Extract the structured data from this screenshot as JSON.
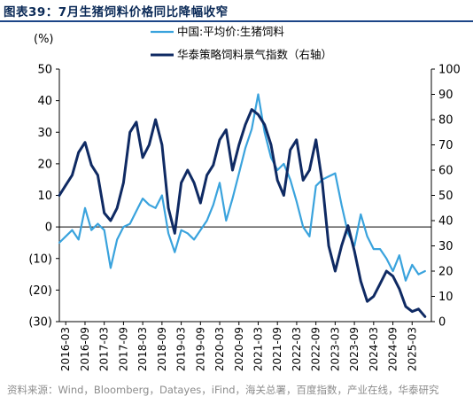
{
  "figure_title": "图表39：7月生猪饲料价格同比降幅收窄",
  "source_note": "资料来源：Wind，Bloomberg，Datayes，iFind，海关总署，百度指数，产业在线，华泰研究",
  "colors": {
    "series1": "#3aa3dd",
    "series2": "#0f2a63",
    "title": "#0b2a57",
    "rule": "#1c4587"
  },
  "chart_data": {
    "type": "line",
    "left_axis_label": "(%)",
    "left_ylim": [
      -30,
      50
    ],
    "left_ticks": [
      "50",
      "40",
      "30",
      "20",
      "10",
      "0",
      "(10)",
      "(20)",
      "(30)"
    ],
    "right_ylim": [
      0,
      100
    ],
    "right_ticks": [
      "100",
      "90",
      "80",
      "70",
      "60",
      "50",
      "40",
      "30",
      "20",
      "10",
      "0"
    ],
    "x_ticks": [
      "2016-03",
      "2016-09",
      "2017-03",
      "2017-09",
      "2018-03",
      "2018-09",
      "2019-03",
      "2019-09",
      "2020-03",
      "2020-09",
      "2021-03",
      "2021-09",
      "2022-03",
      "2022-09",
      "2023-03",
      "2023-09",
      "2024-03",
      "2024-09",
      "2025-03"
    ],
    "grid": false,
    "legend_position": "top",
    "series": [
      {
        "name": "中国:平均价:生猪饲料",
        "axis": "left",
        "color": "#3aa3dd",
        "x": [
          "2016-01",
          "2016-03",
          "2016-05",
          "2016-07",
          "2016-09",
          "2016-11",
          "2017-01",
          "2017-03",
          "2017-05",
          "2017-07",
          "2017-09",
          "2017-11",
          "2018-01",
          "2018-03",
          "2018-05",
          "2018-07",
          "2018-09",
          "2018-11",
          "2019-01",
          "2019-03",
          "2019-05",
          "2019-07",
          "2019-09",
          "2019-11",
          "2020-01",
          "2020-03",
          "2020-05",
          "2020-07",
          "2020-09",
          "2020-11",
          "2021-01",
          "2021-03",
          "2021-05",
          "2021-07",
          "2021-09",
          "2021-11",
          "2022-01",
          "2022-03",
          "2022-05",
          "2022-07",
          "2022-09",
          "2022-11",
          "2023-01",
          "2023-03",
          "2023-05",
          "2023-07",
          "2023-09",
          "2023-11",
          "2024-01",
          "2024-03",
          "2024-05",
          "2024-07",
          "2024-09",
          "2024-11",
          "2025-01",
          "2025-03",
          "2025-05",
          "2025-07"
        ],
        "values": [
          -5,
          -3,
          -1,
          -4,
          6,
          -1,
          1,
          -1,
          -13,
          -4,
          0,
          1,
          5,
          9,
          7,
          6,
          10,
          -2,
          -8,
          -1,
          -2,
          -4,
          -1,
          2,
          7,
          14,
          2,
          9,
          17,
          25,
          31,
          42,
          30,
          22,
          18,
          20,
          15,
          8,
          0,
          -3,
          13,
          15,
          16,
          17,
          7,
          -2,
          -6,
          4,
          -3,
          -7,
          -7,
          -10,
          -14,
          -9,
          -17,
          -12,
          -15,
          -14
        ]
      },
      {
        "name": "华泰策略饲料景气指数（右轴）",
        "axis": "right",
        "color": "#0f2a63",
        "x": [
          "2016-01",
          "2016-03",
          "2016-05",
          "2016-07",
          "2016-09",
          "2016-11",
          "2017-01",
          "2017-03",
          "2017-05",
          "2017-07",
          "2017-09",
          "2017-11",
          "2018-01",
          "2018-03",
          "2018-05",
          "2018-07",
          "2018-09",
          "2018-11",
          "2019-01",
          "2019-03",
          "2019-05",
          "2019-07",
          "2019-09",
          "2019-11",
          "2020-01",
          "2020-03",
          "2020-05",
          "2020-07",
          "2020-09",
          "2020-11",
          "2021-01",
          "2021-03",
          "2021-05",
          "2021-07",
          "2021-09",
          "2021-11",
          "2022-01",
          "2022-03",
          "2022-05",
          "2022-07",
          "2022-09",
          "2022-11",
          "2023-01",
          "2023-03",
          "2023-05",
          "2023-07",
          "2023-09",
          "2023-11",
          "2024-01",
          "2024-03",
          "2024-05",
          "2024-07",
          "2024-09",
          "2024-11",
          "2025-01",
          "2025-03",
          "2025-05",
          "2025-07"
        ],
        "values": [
          50,
          54,
          58,
          67,
          71,
          62,
          58,
          43,
          40,
          45,
          55,
          75,
          79,
          65,
          70,
          80,
          70,
          45,
          35,
          55,
          60,
          55,
          47,
          58,
          62,
          72,
          76,
          60,
          70,
          78,
          84,
          82,
          78,
          70,
          56,
          50,
          68,
          72,
          56,
          60,
          72,
          55,
          30,
          20,
          30,
          38,
          28,
          16,
          8,
          10,
          15,
          20,
          18,
          13,
          6,
          4,
          5,
          2
        ]
      }
    ]
  }
}
